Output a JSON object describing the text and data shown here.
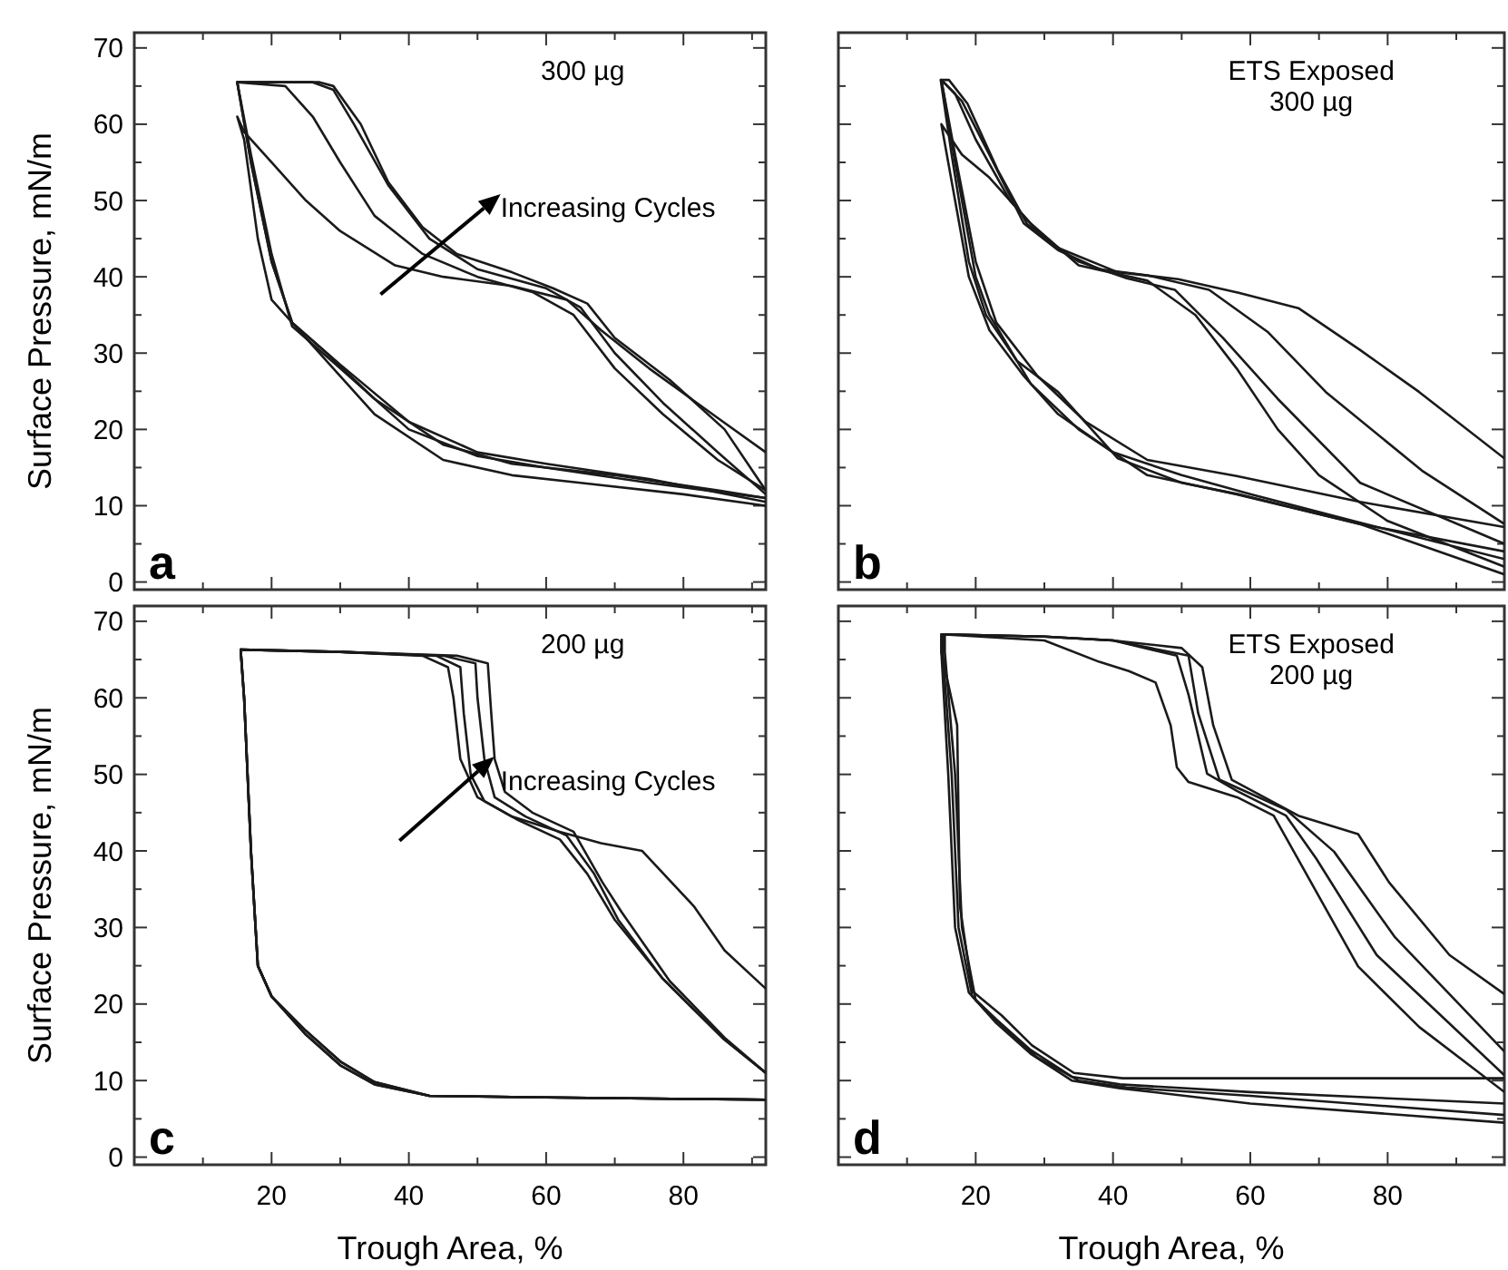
{
  "chart_data": [
    {
      "type": "line",
      "ylabel": "Surface Pressure, mN/m",
      "xlim": [
        0,
        92
      ],
      "ylim": [
        -1,
        72
      ],
      "tick_labels": "y",
      "xticks": [
        {
          "value": 10,
          "label": null
        },
        20,
        {
          "value": 30,
          "label": null
        },
        40,
        {
          "value": 50,
          "label": null
        },
        60,
        {
          "value": 70,
          "label": null
        },
        80,
        {
          "value": 90,
          "label": null
        }
      ],
      "yticks": [
        0,
        {
          "value": 5,
          "label": null
        },
        10,
        {
          "value": 15,
          "label": null
        },
        20,
        {
          "value": 25,
          "label": null
        },
        30,
        {
          "value": 35,
          "label": null
        },
        40,
        {
          "value": 45,
          "label": null
        },
        50,
        {
          "value": 55,
          "label": null
        },
        60,
        {
          "value": 65,
          "label": null
        },
        70
      ],
      "annotations": [
        "a",
        "300 µg",
        "Increasing Cycles"
      ],
      "series": [
        {
          "color": "#1a1a1a",
          "x": [
            92,
            85,
            75,
            68,
            63,
            55,
            45,
            38,
            30,
            25,
            20,
            16,
            15,
            16,
            18,
            20,
            23,
            27,
            35,
            45,
            55,
            65,
            80,
            92
          ],
          "values": [
            17,
            21.5,
            28,
            33,
            37,
            38.8,
            40,
            41.5,
            46,
            50,
            55,
            59,
            61,
            58,
            45,
            37,
            34,
            30,
            22,
            16,
            14,
            13,
            11.5,
            10
          ]
        },
        {
          "color": "#1a1a1a",
          "x": [
            92,
            85,
            77,
            70,
            64,
            58,
            50,
            42,
            35,
            30,
            26,
            22,
            15,
            17,
            20,
            23,
            28,
            35,
            45,
            55,
            70,
            85,
            92
          ],
          "values": [
            12,
            16,
            22,
            28,
            35,
            38,
            40,
            43,
            48,
            55,
            61,
            65,
            65.5,
            55,
            42,
            34,
            30,
            24,
            18,
            15.5,
            14,
            12,
            11
          ]
        },
        {
          "color": "#1a1a1a",
          "x": [
            92,
            85,
            77,
            70,
            65,
            60,
            50,
            43,
            37,
            32,
            29,
            26,
            15,
            17,
            20,
            23,
            30,
            40,
            50,
            60,
            75,
            92
          ],
          "values": [
            11.5,
            17,
            23.5,
            30,
            36,
            38.5,
            41,
            45,
            52,
            60,
            64.5,
            65.5,
            65.5,
            56,
            43,
            33.5,
            28,
            20,
            16.5,
            15,
            13,
            11
          ]
        },
        {
          "color": "#1a1a1a",
          "x": [
            92,
            86,
            78,
            70,
            66,
            61,
            55,
            47,
            42,
            37,
            33,
            29,
            27,
            15,
            17,
            20,
            23,
            30,
            40,
            50,
            60,
            75,
            92
          ],
          "values": [
            12,
            20,
            26.5,
            32,
            36.5,
            38.5,
            40.6,
            43,
            46.5,
            52.4,
            60,
            65,
            65.5,
            65.5,
            55,
            42,
            34,
            28.5,
            21,
            17,
            15.5,
            13.5,
            10.5
          ]
        }
      ]
    },
    {
      "type": "line",
      "xlim": [
        0,
        97
      ],
      "ylim": [
        -1,
        72
      ],
      "tick_labels": false,
      "xticks": [
        {
          "value": 10,
          "label": null
        },
        20,
        {
          "value": 30,
          "label": null
        },
        40,
        {
          "value": 50,
          "label": null
        },
        60,
        {
          "value": 70,
          "label": null
        },
        80,
        {
          "value": 90,
          "label": null
        }
      ],
      "yticks": [
        0,
        {
          "value": 5,
          "label": null
        },
        10,
        {
          "value": 15,
          "label": null
        },
        20,
        {
          "value": 25,
          "label": null
        },
        30,
        {
          "value": 35,
          "label": null
        },
        40,
        {
          "value": 45,
          "label": null
        },
        50,
        {
          "value": 55,
          "label": null
        },
        60,
        {
          "value": 65,
          "label": null
        },
        70
      ],
      "annotations": [
        "b",
        "ETS Exposed",
        "300 µg"
      ],
      "series": [
        {
          "color": "#1a1a1a",
          "x": [
            97,
            80,
            70,
            64,
            58,
            52,
            45,
            35,
            28,
            22,
            18,
            15,
            16,
            19,
            22,
            27,
            32,
            40,
            50,
            60,
            75,
            97
          ],
          "values": [
            2,
            8,
            14,
            20,
            28,
            35,
            39.5,
            41.5,
            47,
            53,
            56,
            60,
            55,
            40,
            33,
            27,
            22,
            17,
            14,
            11.5,
            8,
            3
          ]
        },
        {
          "color": "#1a1a1a",
          "x": [
            97,
            76,
            64,
            56,
            49,
            42,
            35,
            30,
            25,
            20,
            17,
            15,
            17,
            20,
            22,
            28,
            35,
            45,
            58,
            76,
            97
          ],
          "values": [
            5,
            13,
            24,
            32,
            38.3,
            39.8,
            42,
            45,
            50,
            58,
            64,
            65.8,
            55,
            40,
            35,
            26,
            20,
            14,
            11.5,
            7.6,
            4
          ]
        },
        {
          "color": "#1a1a1a",
          "x": [
            97,
            85,
            71,
            62.5,
            54,
            45,
            38,
            32,
            27,
            22,
            18,
            15,
            17,
            20,
            23,
            29,
            36,
            45,
            58,
            76,
            97
          ],
          "values": [
            7.6,
            14.6,
            24.9,
            32.8,
            38.3,
            40.2,
            41,
            43.5,
            47,
            56,
            63,
            65.8,
            56,
            42,
            34,
            27,
            21,
            16,
            13.9,
            10.5,
            7.2
          ]
        },
        {
          "color": "#1a1a1a",
          "x": [
            97,
            84.6,
            76,
            67,
            58.3,
            49.5,
            40.7,
            32,
            27.5,
            23.2,
            18.8,
            16.1,
            14.9,
            16.5,
            19,
            21.5,
            26,
            32,
            40.7,
            50,
            58.3,
            76,
            97
          ],
          "values": [
            16.2,
            24.9,
            30.4,
            35.9,
            37.9,
            39.7,
            40.6,
            43.8,
            46.9,
            54,
            62.7,
            65.8,
            65.8,
            56,
            42,
            35,
            29,
            24.9,
            16.2,
            13,
            11.5,
            7.6,
            1
          ]
        }
      ]
    },
    {
      "type": "line",
      "ylabel": "Surface Pressure, mN/m",
      "xlabel": "Trough Area, %",
      "xlim": [
        0,
        92
      ],
      "ylim": [
        -1,
        72
      ],
      "xticks": [
        {
          "value": 10,
          "label": null
        },
        20,
        {
          "value": 30,
          "label": null
        },
        40,
        {
          "value": 50,
          "label": null
        },
        60,
        {
          "value": 70,
          "label": null
        },
        80,
        {
          "value": 90,
          "label": null
        }
      ],
      "yticks": [
        0,
        {
          "value": 5,
          "label": null
        },
        10,
        {
          "value": 15,
          "label": null
        },
        20,
        {
          "value": 25,
          "label": null
        },
        30,
        {
          "value": 35,
          "label": null
        },
        40,
        {
          "value": 45,
          "label": null
        },
        50,
        {
          "value": 55,
          "label": null
        },
        60,
        {
          "value": 65,
          "label": null
        },
        70
      ],
      "annotations": [
        "c",
        "200 µg",
        "Increasing Cycles"
      ],
      "series": [
        {
          "color": "#1a1a1a",
          "x": [
            92,
            86,
            81.5,
            74,
            68,
            62,
            55,
            50,
            47.5,
            46.5,
            45.7,
            42,
            30,
            15.5,
            16,
            17,
            18,
            20,
            25,
            30,
            35,
            43,
            60,
            92
          ],
          "values": [
            22,
            27,
            32.8,
            40,
            41,
            42.5,
            44.5,
            47,
            52,
            60,
            64,
            65.5,
            66,
            66.3,
            60,
            40,
            25,
            21,
            16,
            12,
            9.5,
            8,
            7.8,
            7.5
          ]
        },
        {
          "color": "#1a1a1a",
          "x": [
            92,
            85.9,
            77,
            70,
            66,
            62,
            56,
            51,
            49,
            48,
            47.5,
            44,
            30,
            15.5,
            16,
            17,
            18,
            20,
            25,
            30,
            35,
            43,
            60,
            92
          ],
          "values": [
            11,
            15.4,
            23.3,
            31,
            37,
            41.5,
            44,
            46.5,
            50,
            58,
            64,
            65.5,
            66,
            66.3,
            60,
            40,
            25,
            21,
            16.5,
            12.5,
            9.8,
            8,
            7.8,
            7.5
          ]
        },
        {
          "color": "#1a1a1a",
          "x": [
            92,
            85.9,
            77,
            70.5,
            67,
            63,
            57,
            52.5,
            51,
            50,
            49.7,
            45,
            30,
            15.5,
            16,
            17,
            18,
            20,
            25,
            30,
            35,
            43,
            60,
            92
          ],
          "values": [
            11,
            15.4,
            23.3,
            31,
            37,
            42,
            44.5,
            47,
            52,
            60,
            64.5,
            65.5,
            66,
            66.3,
            60,
            40,
            25,
            21,
            16,
            12,
            9.5,
            8,
            7.8,
            7.5
          ]
        },
        {
          "color": "#1a1a1a",
          "x": [
            92,
            86,
            78,
            71,
            68.2,
            64,
            58,
            54,
            52.5,
            52,
            51.5,
            47,
            30,
            15.5,
            16,
            17,
            18,
            20,
            25,
            30,
            35,
            43,
            60,
            92
          ],
          "values": [
            11,
            15.6,
            23,
            32,
            35.9,
            42.5,
            45,
            47.7,
            52,
            58,
            64.5,
            65.5,
            66,
            66.3,
            60,
            40,
            25,
            21,
            16.5,
            12.5,
            9.8,
            8,
            7.8,
            7.5
          ]
        }
      ]
    },
    {
      "type": "line",
      "xlabel": "Trough Area, %",
      "xlim": [
        0,
        97
      ],
      "ylim": [
        -1,
        72
      ],
      "tick_labels": "x",
      "xticks": [
        {
          "value": 10,
          "label": null
        },
        20,
        {
          "value": 30,
          "label": null
        },
        40,
        {
          "value": 50,
          "label": null
        },
        60,
        {
          "value": 70,
          "label": null
        },
        80,
        {
          "value": 90,
          "label": null
        }
      ],
      "yticks": [
        0,
        {
          "value": 5,
          "label": null
        },
        10,
        {
          "value": 15,
          "label": null
        },
        20,
        {
          "value": 25,
          "label": null
        },
        30,
        {
          "value": 35,
          "label": null
        },
        40,
        {
          "value": 45,
          "label": null
        },
        50,
        {
          "value": 55,
          "label": null
        },
        60,
        {
          "value": 65,
          "label": null
        },
        70
      ],
      "annotations": [
        "d",
        "ETS Exposed",
        "200 µg"
      ],
      "series": [
        {
          "color": "#1a1a1a",
          "x": [
            97,
            84.6,
            75.7,
            66.9,
            63.4,
            58.1,
            51,
            49.3,
            48.4,
            46.2,
            42.3,
            38,
            30,
            15,
            15,
            17.3,
            17.7,
            19.5,
            23.8,
            28.2,
            34.3,
            41.4,
            60,
            97
          ],
          "values": [
            8.5,
            17,
            24.9,
            39,
            44.6,
            47,
            49,
            50.9,
            56.4,
            62,
            63.5,
            64.7,
            67.5,
            68.3,
            66,
            56.4,
            32.8,
            21.7,
            18.5,
            14.6,
            11,
            10.3,
            10.3,
            10.3
          ]
        },
        {
          "color": "#1a1a1a",
          "x": [
            97,
            78.4,
            69.6,
            65.2,
            58.1,
            53.7,
            51,
            49.3,
            40,
            30,
            15.5,
            15.5,
            17,
            18,
            20,
            24,
            29,
            35,
            42,
            60,
            97
          ],
          "values": [
            10.7,
            26.4,
            39,
            44.6,
            47.8,
            50.1,
            60.4,
            65.5,
            67.5,
            68,
            68.3,
            66,
            50,
            30,
            20.5,
            17,
            13,
            10,
            9.1,
            8,
            5.5
          ]
        },
        {
          "color": "#1a1a1a",
          "x": [
            97,
            81,
            72.2,
            65.2,
            55.5,
            52.4,
            51,
            40,
            30,
            15.2,
            15.2,
            16.5,
            17.5,
            19.5,
            23,
            28,
            34,
            41,
            60,
            97
          ],
          "values": [
            13.8,
            28.8,
            39.9,
            45.4,
            49.3,
            58,
            65.5,
            67.5,
            68,
            68.3,
            66,
            50,
            30,
            21,
            18,
            14,
            10.5,
            9.5,
            8.5,
            7
          ]
        },
        {
          "color": "#1a1a1a",
          "x": [
            97,
            89,
            80.2,
            75.7,
            67,
            57.3,
            54.6,
            53,
            50,
            40,
            30,
            15,
            15,
            16,
            17,
            19,
            23,
            28,
            34,
            41,
            60,
            97
          ],
          "values": [
            21.3,
            26.4,
            35.9,
            42.2,
            44.6,
            49.3,
            56.4,
            64,
            66.5,
            67.5,
            68,
            68.3,
            66,
            50,
            30,
            21.5,
            17.5,
            13.5,
            10,
            9,
            7,
            4.5
          ]
        }
      ]
    }
  ]
}
